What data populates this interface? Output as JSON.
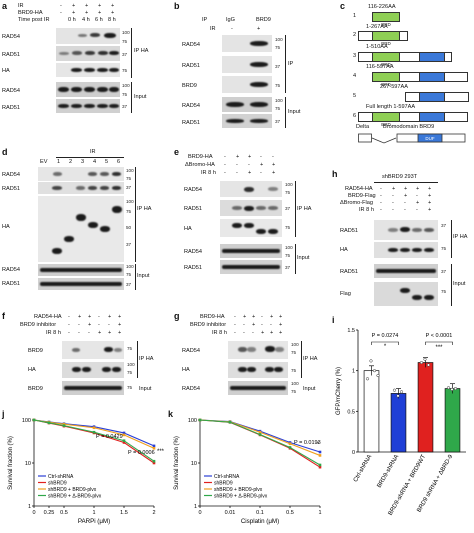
{
  "panels": {
    "a": {
      "letter": "a",
      "rows": [
        {
          "label": "IR",
          "vals": [
            "-",
            "+",
            "+",
            "+",
            "+"
          ]
        },
        {
          "label": "BRD9-HA",
          "vals": [
            "-",
            "+",
            "+",
            "+",
            "+"
          ]
        },
        {
          "label": "Time post IR",
          "vals": [
            "",
            "0 h",
            "4 h",
            "6 h",
            "8 h"
          ]
        }
      ],
      "blots": [
        "RAD54",
        "RAD51",
        "HA",
        "RAD54",
        "RAD51"
      ],
      "groups": [
        "IP HA",
        "Input"
      ],
      "markers": [
        "100",
        "75",
        "37",
        "75",
        "100",
        "75",
        "37"
      ]
    },
    "b": {
      "letter": "b",
      "header": [
        "IP",
        "IgG",
        "BRD9"
      ],
      "ir_label": "IR",
      "ir_vals": [
        "-",
        "+"
      ],
      "blots": [
        "RAD54",
        "RAD51",
        "BRD9",
        "RAD54",
        "RAD51"
      ],
      "groups": [
        "IP",
        "Input"
      ],
      "markers": [
        "100",
        "75",
        "37",
        "75",
        "100",
        "75",
        "37"
      ]
    },
    "c": {
      "letter": "c",
      "constructs": [
        {
          "num": "1",
          "range": "116-226AA"
        },
        {
          "num": "2",
          "range": "1-267AA"
        },
        {
          "num": "3",
          "range": "1-510AA"
        },
        {
          "num": "4",
          "range": "116-597AA"
        },
        {
          "num": "5",
          "range": "267-597AA"
        },
        {
          "num": "6",
          "range": "Full length 1-597AA"
        }
      ],
      "domain_brd": "BRD",
      "domain_duf": "DUF",
      "delta_label": "Delta",
      "delta_text": "Bromodomain BRD9"
    },
    "d": {
      "letter": "d",
      "ir_label": "IR",
      "lanes": [
        "EV",
        "1",
        "2",
        "3",
        "4",
        "5",
        "6"
      ],
      "blots": [
        "RAD54",
        "RAD51",
        "HA",
        "RAD54",
        "RAD51"
      ],
      "groups": [
        "IP HA",
        "Input"
      ],
      "markers": [
        "100",
        "75",
        "37",
        "100",
        "75",
        "50",
        "37",
        "100",
        "75",
        "37"
      ]
    },
    "e": {
      "letter": "e",
      "rows": [
        {
          "label": "BRD9-HA",
          "vals": [
            "-",
            "+",
            "+",
            "-",
            "-"
          ]
        },
        {
          "label": "ΔBromo-HA",
          "vals": [
            "-",
            "-",
            "-",
            "+",
            "+"
          ]
        },
        {
          "label": "IR 8 h",
          "vals": [
            "-",
            "-",
            "+",
            "-",
            "+"
          ]
        }
      ],
      "blots": [
        "RAD54",
        "RAD51",
        "HA",
        "RAD54",
        "RAD51"
      ],
      "groups": [
        "IP HA",
        "Input"
      ],
      "markers": [
        "100",
        "75",
        "37",
        "75",
        "100",
        "75",
        "37"
      ]
    },
    "f": {
      "letter": "f",
      "rows": [
        {
          "label": "RAD54-HA",
          "vals": [
            "-",
            "+",
            "+",
            "-",
            "+",
            "+"
          ]
        },
        {
          "label": "BRD9 inhibitor",
          "vals": [
            "-",
            "-",
            "+",
            "-",
            "-",
            "+"
          ]
        },
        {
          "label": "IR 8 h",
          "vals": [
            "-",
            "-",
            "-",
            "+",
            "+",
            "+"
          ]
        }
      ],
      "blots": [
        "BRD9",
        "HA",
        "BRD9"
      ],
      "groups": [
        "IP HA",
        "Input"
      ],
      "markers": [
        "75",
        "100",
        "75",
        "75"
      ]
    },
    "g": {
      "letter": "g",
      "rows": [
        {
          "label": "BRD9-HA",
          "vals": [
            "-",
            "+",
            "+",
            "-",
            "+",
            "+"
          ]
        },
        {
          "label": "BRD9 inhibitor",
          "vals": [
            "-",
            "-",
            "+",
            "-",
            "-",
            "+"
          ]
        },
        {
          "label": "IR 8 h",
          "vals": [
            "-",
            "-",
            "-",
            "+",
            "+",
            "+"
          ]
        }
      ],
      "blots": [
        "RAD54",
        "HA",
        "RAD54"
      ],
      "groups": [
        "IP HA",
        "Input"
      ],
      "markers": [
        "100",
        "75",
        "75",
        "100",
        "75"
      ]
    },
    "h": {
      "letter": "h",
      "cell": "shBRD9 293T",
      "rows": [
        {
          "label": "RAD54-HA",
          "vals": [
            "-",
            "+",
            "+",
            "+",
            "+"
          ]
        },
        {
          "label": "BRD9-Flag",
          "vals": [
            "-",
            "-",
            "+",
            "-",
            "+"
          ]
        },
        {
          "label": "ΔBromo-Flag",
          "vals": [
            "-",
            "-",
            "-",
            "+",
            "+"
          ]
        },
        {
          "label": "IR 8 h",
          "vals": [
            "-",
            "-",
            "-",
            "-",
            "+"
          ]
        }
      ],
      "blots": [
        "RAD51",
        "HA",
        "RAD51",
        "Flag"
      ],
      "groups": [
        "IP HA",
        "Input"
      ],
      "markers": [
        "37",
        "75",
        "37",
        "75"
      ]
    }
  },
  "chart_data": [
    {
      "panel": "i",
      "type": "bar",
      "ylabel": "GFP/mCherry (%)",
      "ylim": [
        0,
        1.5
      ],
      "yticks": [
        0,
        0.5,
        1.0,
        1.5
      ],
      "categories": [
        "Ctrl-shRNA",
        "BRD9-shRNA",
        "BRD9-shRNA + BRD9WT",
        "BRD9 shRNA + ΔBRD-9"
      ],
      "values": [
        1.0,
        0.72,
        1.1,
        0.78
      ],
      "colors": [
        "#ffffff",
        "#1f3fd6",
        "#e0211f",
        "#2fa84a"
      ],
      "annotations": [
        {
          "text": "P = 0.0274",
          "stars": "*"
        },
        {
          "text": "P < 0.0001",
          "stars": "***"
        }
      ]
    },
    {
      "panel": "j",
      "type": "line",
      "xlabel": "PARPi (μM)",
      "ylabel": "Survival fraction (%)",
      "y_scale": "log",
      "ylim": [
        1,
        100
      ],
      "yticks": [
        "1",
        "10",
        "100"
      ],
      "x": [
        0,
        0.25,
        0.5,
        1,
        1.5,
        2
      ],
      "series": [
        {
          "name": "Ctrl-shRNA",
          "color": "#2a3fd6",
          "values": [
            100,
            90,
            82,
            70,
            50,
            25
          ]
        },
        {
          "name": "shBRD9",
          "color": "#e0211f",
          "values": [
            100,
            85,
            72,
            50,
            30,
            10
          ]
        },
        {
          "name": "shBRD9 + BRD9-plvx",
          "color": "#f0a020",
          "values": [
            100,
            89,
            80,
            66,
            45,
            22
          ]
        },
        {
          "name": "shBRD9 + Δ-BRD9-plvx",
          "color": "#2fa84a",
          "values": [
            100,
            86,
            74,
            52,
            33,
            11
          ]
        }
      ],
      "annotations": [
        {
          "text": "P = 0.0429"
        },
        {
          "text": "P = 0.0006"
        },
        {
          "text": "***"
        }
      ]
    },
    {
      "panel": "k",
      "type": "line",
      "xlabel": "Cisplatin (μM)",
      "ylabel": "Survival fraction (%)",
      "y_scale": "log",
      "x_scale": "log",
      "ylim": [
        1,
        100
      ],
      "yticks": [
        "1",
        "10",
        "100"
      ],
      "xticks": [
        "0",
        "0.01",
        "0.1",
        "0.5",
        "1"
      ],
      "x": [
        0,
        0.01,
        0.1,
        0.5,
        1
      ],
      "series": [
        {
          "name": "Ctrl-shRNA",
          "color": "#2a3fd6",
          "values": [
            100,
            92,
            55,
            30,
            18
          ]
        },
        {
          "name": "shBRD9",
          "color": "#e0211f",
          "values": [
            100,
            88,
            45,
            22,
            8
          ]
        },
        {
          "name": "shBRD9 + BRD9-plvx",
          "color": "#f0a020",
          "values": [
            100,
            91,
            52,
            28,
            15
          ]
        },
        {
          "name": "shBRD9 + Δ-BRD9-plvx",
          "color": "#2fa84a",
          "values": [
            100,
            89,
            46,
            23,
            9
          ]
        }
      ],
      "annotations": [
        {
          "text": "P = 0.0193"
        },
        {
          "text": "*"
        }
      ]
    }
  ]
}
